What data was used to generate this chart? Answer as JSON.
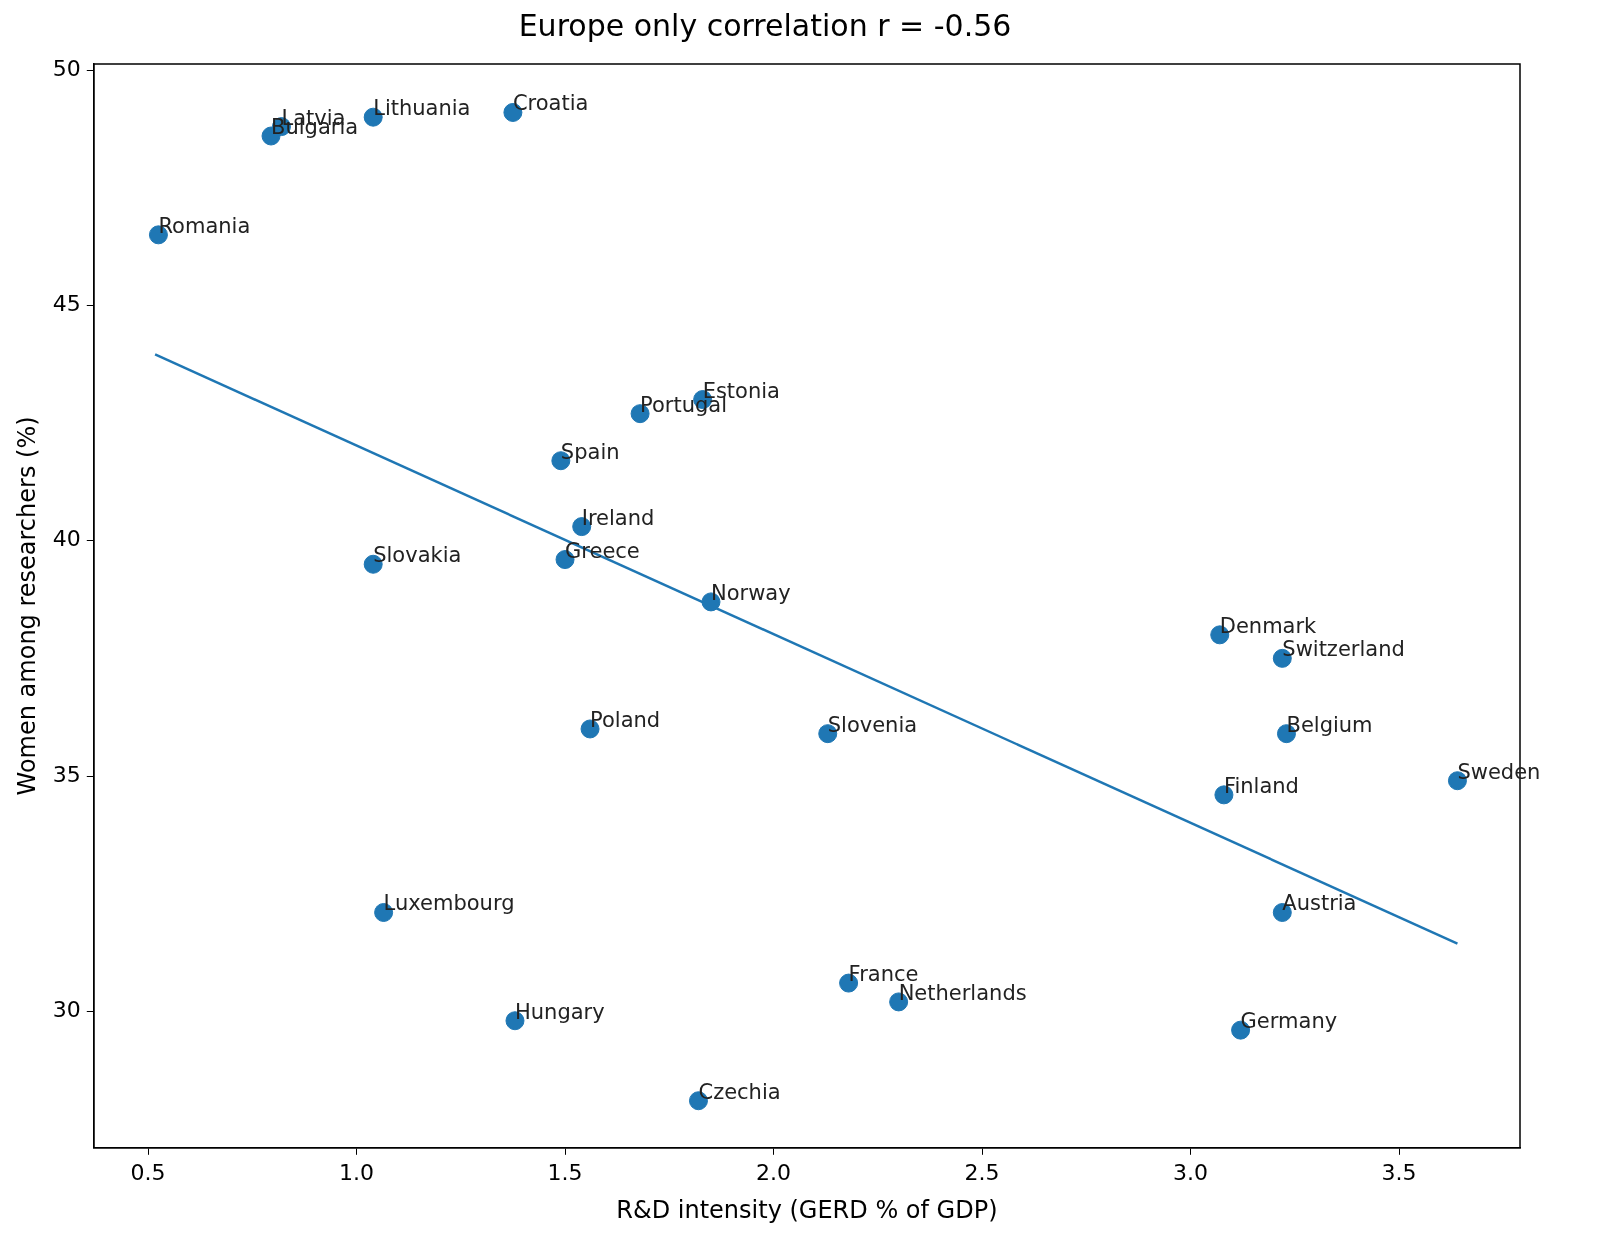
{
  "chart_data": {
    "type": "scatter",
    "title": "Europe only correlation r = -0.56",
    "xlabel": "R&D intensity (GERD % of GDP)",
    "ylabel": "Women among researchers (%)",
    "xlim": [
      0.37,
      3.79
    ],
    "ylim": [
      27.1,
      50.13
    ],
    "xticks": [
      {
        "value": 0.5,
        "label": "0.5"
      },
      {
        "value": 1,
        "label": "1.0"
      },
      {
        "value": 1.5,
        "label": "1.5"
      },
      {
        "value": 2,
        "label": "2.0"
      },
      {
        "value": 2.5,
        "label": "2.5"
      },
      {
        "value": 3,
        "label": "3.0"
      },
      {
        "value": 3.5,
        "label": "3.5"
      }
    ],
    "yticks": [
      30,
      35,
      40,
      45,
      50
    ],
    "grid": false,
    "legend": false,
    "marker": "circle",
    "series": [
      {
        "color": "#1f77b4",
        "x": [
          0.525,
          0.795,
          0.82,
          1.04,
          1.375,
          1.83,
          1.68,
          1.49,
          1.54,
          1.5,
          1.04,
          1.85,
          3.07,
          3.22,
          1.56,
          2.13,
          3.23,
          3.64,
          3.08,
          1.065,
          3.22,
          2.18,
          2.3,
          1.38,
          3.12,
          1.82
        ],
        "values": [
          46.5,
          48.6,
          48.8,
          49.0,
          49.1,
          43.0,
          42.7,
          41.7,
          40.3,
          39.6,
          39.5,
          38.7,
          38.0,
          37.5,
          36.0,
          35.9,
          35.9,
          34.9,
          34.6,
          32.1,
          32.1,
          30.6,
          30.2,
          29.8,
          29.6,
          28.1
        ]
      },
      {
        "type": "line",
        "color": "#1f77b4",
        "x": [
          0.517,
          3.64
        ],
        "values": [
          43.96,
          31.44
        ],
        "line_style": "solid",
        "marker": "none"
      }
    ],
    "annotations": [
      {
        "text": "Romania",
        "x": 0.525,
        "y": 46.5
      },
      {
        "text": "Bulgaria",
        "x": 0.795,
        "y": 48.6
      },
      {
        "text": "Latvia",
        "x": 0.82,
        "y": 48.8
      },
      {
        "text": "Lithuania",
        "x": 1.04,
        "y": 49.0
      },
      {
        "text": "Croatia",
        "x": 1.375,
        "y": 49.1
      },
      {
        "text": "Estonia",
        "x": 1.83,
        "y": 43.0
      },
      {
        "text": "Portugal",
        "x": 1.68,
        "y": 42.7
      },
      {
        "text": "Spain",
        "x": 1.49,
        "y": 41.7
      },
      {
        "text": "Ireland",
        "x": 1.54,
        "y": 40.3
      },
      {
        "text": "Greece",
        "x": 1.5,
        "y": 39.6
      },
      {
        "text": "Slovakia",
        "x": 1.04,
        "y": 39.5
      },
      {
        "text": "Norway",
        "x": 1.85,
        "y": 38.7
      },
      {
        "text": "Denmark",
        "x": 3.07,
        "y": 38.0
      },
      {
        "text": "Switzerland",
        "x": 3.22,
        "y": 37.5
      },
      {
        "text": "Poland",
        "x": 1.56,
        "y": 36.0
      },
      {
        "text": "Slovenia",
        "x": 2.13,
        "y": 35.9
      },
      {
        "text": "Belgium",
        "x": 3.23,
        "y": 35.9
      },
      {
        "text": "Sweden",
        "x": 3.64,
        "y": 34.9
      },
      {
        "text": "Finland",
        "x": 3.08,
        "y": 34.6
      },
      {
        "text": "Luxembourg",
        "x": 1.065,
        "y": 32.1
      },
      {
        "text": "Austria",
        "x": 3.22,
        "y": 32.1
      },
      {
        "text": "France",
        "x": 2.18,
        "y": 30.6
      },
      {
        "text": "Netherlands",
        "x": 2.3,
        "y": 30.2
      },
      {
        "text": "Hungary",
        "x": 1.38,
        "y": 29.8
      },
      {
        "text": "Germany",
        "x": 3.12,
        "y": 29.6
      },
      {
        "text": "Czechia",
        "x": 1.82,
        "y": 28.1
      }
    ]
  }
}
